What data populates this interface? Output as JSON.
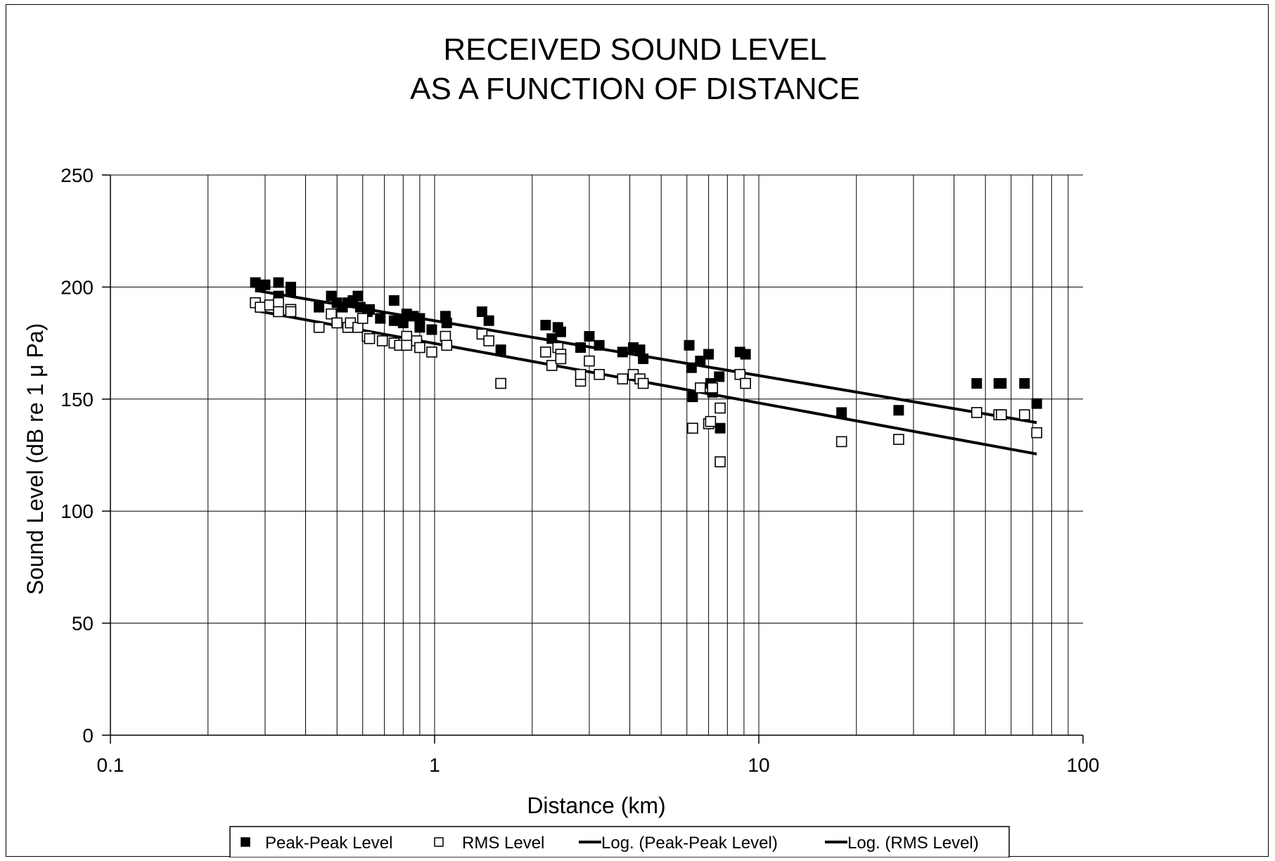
{
  "chart_data": {
    "type": "scatter",
    "title": [
      "RECEIVED SOUND LEVEL",
      "AS A FUNCTION OF DISTANCE"
    ],
    "xlabel": "Distance (km)",
    "ylabel": "Sound Level (dB re 1 μ Pa)",
    "x_scale": "log",
    "xlim": [
      0.1,
      100
    ],
    "ylim": [
      0,
      250
    ],
    "x_ticks": [
      0.1,
      1,
      10,
      100
    ],
    "x_tick_labels": [
      "0.1",
      "1",
      "10",
      "100"
    ],
    "y_ticks": [
      0,
      50,
      100,
      150,
      200,
      250
    ],
    "y_tick_labels": [
      "0",
      "50",
      "100",
      "150",
      "200",
      "250"
    ],
    "grid": true,
    "legend_position": "bottom",
    "series": [
      {
        "name": "Peak-Peak Level",
        "marker": "filled-square",
        "color": "#000000",
        "points": [
          [
            0.28,
            202
          ],
          [
            0.29,
            200
          ],
          [
            0.3,
            201
          ],
          [
            0.33,
            202
          ],
          [
            0.33,
            196
          ],
          [
            0.36,
            200
          ],
          [
            0.36,
            198
          ],
          [
            0.44,
            191
          ],
          [
            0.48,
            196
          ],
          [
            0.5,
            193
          ],
          [
            0.52,
            191
          ],
          [
            0.54,
            193
          ],
          [
            0.56,
            194
          ],
          [
            0.58,
            196
          ],
          [
            0.59,
            191
          ],
          [
            0.62,
            189
          ],
          [
            0.63,
            190
          ],
          [
            0.68,
            186
          ],
          [
            0.75,
            194
          ],
          [
            0.75,
            185
          ],
          [
            0.78,
            185
          ],
          [
            0.8,
            184
          ],
          [
            0.82,
            188
          ],
          [
            0.86,
            187
          ],
          [
            0.9,
            186
          ],
          [
            0.9,
            182
          ],
          [
            0.98,
            181
          ],
          [
            1.08,
            187
          ],
          [
            1.09,
            184
          ],
          [
            1.4,
            189
          ],
          [
            1.47,
            185
          ],
          [
            1.6,
            172
          ],
          [
            2.2,
            183
          ],
          [
            2.3,
            177
          ],
          [
            2.4,
            182
          ],
          [
            2.45,
            180
          ],
          [
            2.82,
            173
          ],
          [
            3.0,
            178
          ],
          [
            3.22,
            174
          ],
          [
            3.8,
            171
          ],
          [
            4.1,
            173
          ],
          [
            4.3,
            172
          ],
          [
            4.4,
            168
          ],
          [
            6.1,
            174
          ],
          [
            6.2,
            164
          ],
          [
            6.25,
            151
          ],
          [
            6.6,
            167
          ],
          [
            7.0,
            170
          ],
          [
            7.1,
            157
          ],
          [
            7.2,
            153
          ],
          [
            7.55,
            160
          ],
          [
            7.6,
            137
          ],
          [
            8.75,
            171
          ],
          [
            9.1,
            170
          ],
          [
            18,
            144
          ],
          [
            27,
            145
          ],
          [
            47,
            157
          ],
          [
            55,
            157
          ],
          [
            56,
            157
          ],
          [
            66,
            157
          ],
          [
            72,
            148
          ]
        ]
      },
      {
        "name": "RMS Level",
        "marker": "open-square",
        "color": "#000000",
        "points": [
          [
            0.28,
            193
          ],
          [
            0.29,
            191
          ],
          [
            0.31,
            192
          ],
          [
            0.33,
            193
          ],
          [
            0.33,
            189
          ],
          [
            0.36,
            190
          ],
          [
            0.36,
            189
          ],
          [
            0.44,
            182
          ],
          [
            0.48,
            188
          ],
          [
            0.5,
            184
          ],
          [
            0.54,
            182
          ],
          [
            0.55,
            184
          ],
          [
            0.58,
            182
          ],
          [
            0.6,
            186
          ],
          [
            0.62,
            178
          ],
          [
            0.63,
            177
          ],
          [
            0.69,
            176
          ],
          [
            0.75,
            175
          ],
          [
            0.78,
            174
          ],
          [
            0.82,
            178
          ],
          [
            0.82,
            174
          ],
          [
            0.88,
            176
          ],
          [
            0.9,
            173
          ],
          [
            0.98,
            171
          ],
          [
            1.08,
            178
          ],
          [
            1.09,
            174
          ],
          [
            1.4,
            179
          ],
          [
            1.47,
            176
          ],
          [
            1.6,
            157
          ],
          [
            2.2,
            171
          ],
          [
            2.3,
            165
          ],
          [
            2.4,
            173
          ],
          [
            2.45,
            170
          ],
          [
            2.45,
            168
          ],
          [
            2.82,
            158
          ],
          [
            2.82,
            161
          ],
          [
            3.0,
            167
          ],
          [
            3.22,
            161
          ],
          [
            3.8,
            159
          ],
          [
            4.1,
            161
          ],
          [
            4.3,
            159
          ],
          [
            4.4,
            157
          ],
          [
            6.25,
            137
          ],
          [
            6.6,
            155
          ],
          [
            7.0,
            139
          ],
          [
            7.1,
            140
          ],
          [
            7.2,
            155
          ],
          [
            7.6,
            146
          ],
          [
            7.6,
            122
          ],
          [
            8.75,
            161
          ],
          [
            9.1,
            157
          ],
          [
            18,
            131
          ],
          [
            27,
            132
          ],
          [
            47,
            144
          ],
          [
            55,
            143
          ],
          [
            56,
            143
          ],
          [
            66,
            143
          ],
          [
            72,
            135
          ]
        ]
      },
      {
        "name": "Log. (Peak-Peak Level)",
        "type": "trendline",
        "color": "#000000",
        "points": [
          [
            0.28,
            198.5
          ],
          [
            72,
            139.5
          ]
        ]
      },
      {
        "name": "Log. (RMS Level)",
        "type": "trendline",
        "color": "#000000",
        "points": [
          [
            0.28,
            189.5
          ],
          [
            72,
            125.5
          ]
        ]
      }
    ]
  }
}
